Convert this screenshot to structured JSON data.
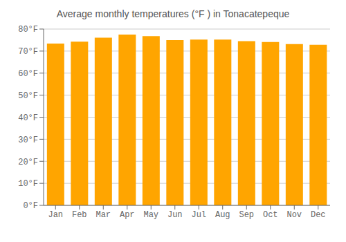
{
  "chart_data": {
    "type": "bar",
    "title": "Average monthly temperatures (°F ) in Tonacatepeque",
    "categories": [
      "Jan",
      "Feb",
      "Mar",
      "Apr",
      "May",
      "Jun",
      "Jul",
      "Aug",
      "Sep",
      "Oct",
      "Nov",
      "Dec"
    ],
    "values": [
      73.4,
      74.3,
      76.1,
      77.5,
      76.8,
      75.0,
      75.2,
      75.2,
      74.5,
      74.1,
      73.2,
      72.9
    ],
    "color": "#FFA500",
    "ylim": [
      0,
      80
    ],
    "yticks": [
      {
        "value": 0,
        "label": "0°F"
      },
      {
        "value": 10,
        "label": "10°F"
      },
      {
        "value": 20,
        "label": "20°F"
      },
      {
        "value": 30,
        "label": "30°F"
      },
      {
        "value": 40,
        "label": "40°F"
      },
      {
        "value": 50,
        "label": "50°F"
      },
      {
        "value": 60,
        "label": "60°F"
      },
      {
        "value": 70,
        "label": "70°F"
      },
      {
        "value": 80,
        "label": "80°F"
      }
    ],
    "grid": true
  }
}
